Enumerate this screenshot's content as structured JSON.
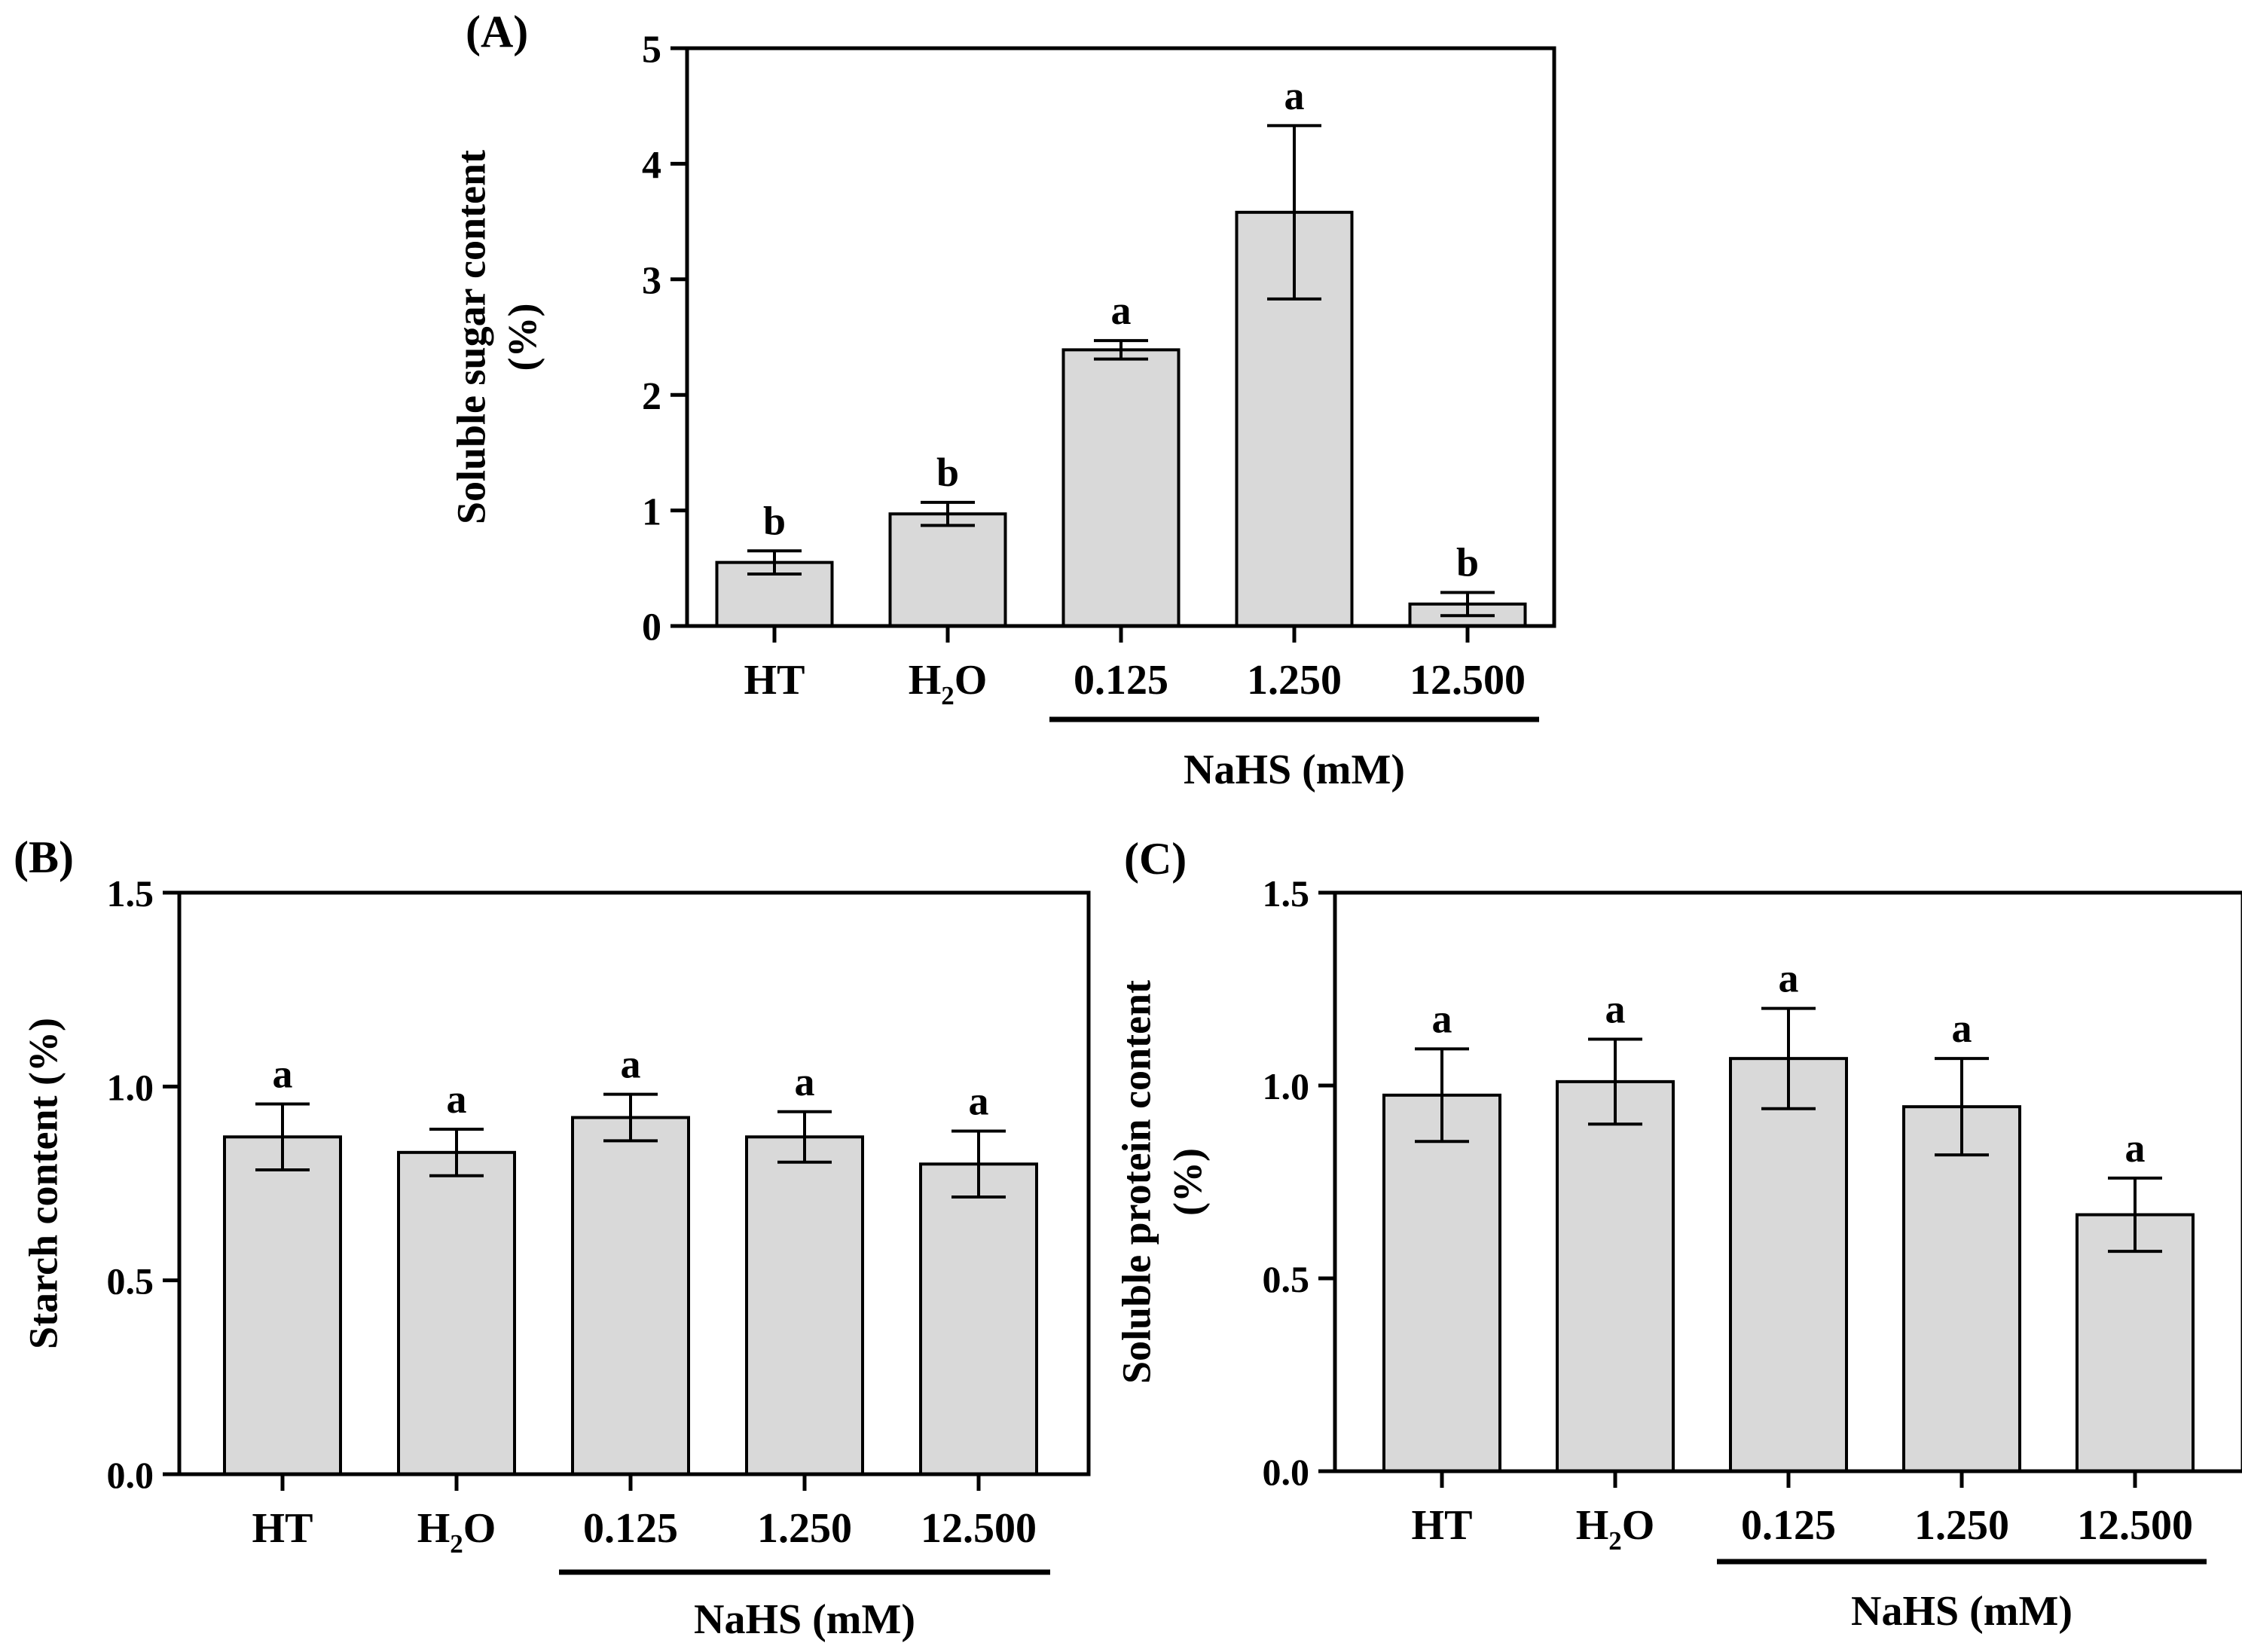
{
  "chart_data": [
    {
      "type": "bar",
      "panel_label": "(A)",
      "ylabel_lines": [
        "Soluble  sugar content",
        "(%)"
      ],
      "xlabel": "NaHS (mM)",
      "categories": [
        "HT",
        "H2O",
        "0.125",
        "1.250",
        "12.500"
      ],
      "values": [
        0.55,
        0.97,
        2.39,
        3.58,
        0.19
      ],
      "errors": [
        0.1,
        0.1,
        0.08,
        0.75,
        0.1
      ],
      "significance": [
        "b",
        "b",
        "a",
        "a",
        "b"
      ],
      "ylim": [
        0,
        5
      ],
      "yticks": [
        0,
        1,
        2,
        3,
        4,
        5
      ],
      "ytick_labels": [
        "0",
        "1",
        "2",
        "3",
        "4",
        "5"
      ]
    },
    {
      "type": "bar",
      "panel_label": "(B)",
      "ylabel_lines": [
        "Starch content (%)"
      ],
      "xlabel": "NaHS (mM)",
      "categories": [
        "HT",
        "H2O",
        "0.125",
        "1.250",
        "12.500"
      ],
      "values": [
        0.87,
        0.83,
        0.92,
        0.87,
        0.8
      ],
      "errors": [
        0.085,
        0.06,
        0.06,
        0.065,
        0.085
      ],
      "significance": [
        "a",
        "a",
        "a",
        "a",
        "a"
      ],
      "ylim": [
        0,
        1.5
      ],
      "yticks": [
        0,
        0.5,
        1.0,
        1.5
      ],
      "ytick_labels": [
        "0.0",
        "0.5",
        "1.0",
        "1.5"
      ]
    },
    {
      "type": "bar",
      "panel_label": "(C)",
      "ylabel_lines": [
        "Soluble  protein content",
        "(%)"
      ],
      "xlabel": "NaHS (mM)",
      "categories": [
        "HT",
        "H2O",
        "0.125",
        "1.250",
        "12.500"
      ],
      "values": [
        0.975,
        1.01,
        1.07,
        0.945,
        0.665
      ],
      "errors": [
        0.12,
        0.11,
        0.13,
        0.125,
        0.095
      ],
      "significance": [
        "a",
        "a",
        "a",
        "a",
        "a"
      ],
      "ylim": [
        0,
        1.5
      ],
      "yticks": [
        0,
        0.5,
        1.0,
        1.5
      ],
      "ytick_labels": [
        "0.0",
        "0.5",
        "1.0",
        "1.5"
      ]
    }
  ],
  "colors": {
    "bar_fill": "#d9d9d9",
    "stroke": "#000000"
  }
}
